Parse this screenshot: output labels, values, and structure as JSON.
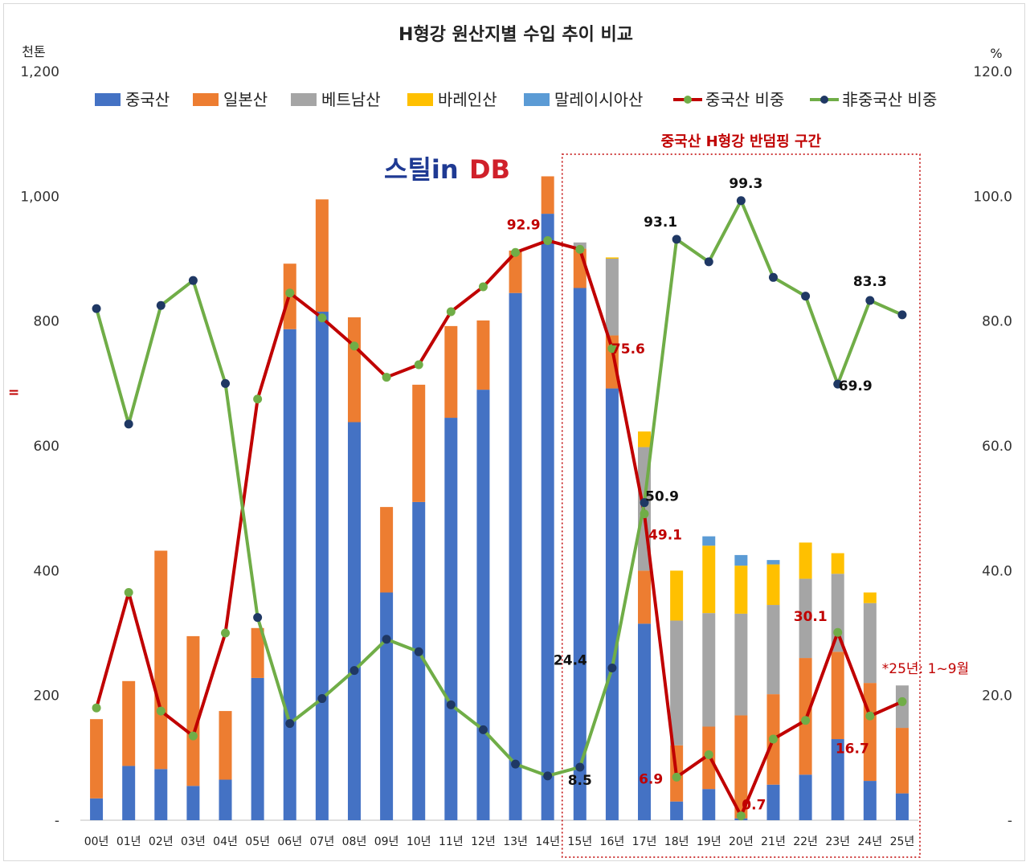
{
  "chart_data": {
    "type": "bar",
    "title": "H형강 원산지별 수입 추이 비교",
    "left_unit": "천톤",
    "right_unit": "%",
    "categories": [
      "00년",
      "01년",
      "02년",
      "03년",
      "04년",
      "05년",
      "06년",
      "07년",
      "08년",
      "09년",
      "10년",
      "11년",
      "12년",
      "13년",
      "14년",
      "15년",
      "16년",
      "17년",
      "18년",
      "19년",
      "20년",
      "21년",
      "22년",
      "23년",
      "24년",
      "25년"
    ],
    "ylim": [
      0,
      1200
    ],
    "y2lim": [
      0,
      120
    ],
    "yticks": [
      "-",
      "200",
      "400",
      "600",
      "800",
      "1,000",
      "1,200"
    ],
    "y2ticks": [
      "-",
      "20.0",
      "40.0",
      "60.0",
      "80.0",
      "100.0",
      "120.0"
    ],
    "stacked": true,
    "series": [
      {
        "name": "중국산",
        "type": "bar",
        "color": "#4472c4",
        "values": [
          35,
          87,
          82,
          55,
          65,
          228,
          787,
          815,
          638,
          365,
          510,
          645,
          690,
          845,
          972,
          853,
          692,
          315,
          30,
          50,
          3,
          57,
          73,
          130,
          63,
          43
        ]
      },
      {
        "name": "일본산",
        "type": "bar",
        "color": "#ed7d31",
        "values": [
          127,
          136,
          350,
          240,
          110,
          80,
          105,
          180,
          168,
          137,
          188,
          147,
          111,
          68,
          60,
          63,
          85,
          85,
          90,
          100,
          165,
          145,
          187,
          140,
          157,
          105
        ]
      },
      {
        "name": "베트남산",
        "type": "bar",
        "color": "#a5a5a5",
        "values": [
          0,
          0,
          0,
          0,
          0,
          0,
          0,
          0,
          0,
          0,
          0,
          0,
          0,
          0,
          0,
          10,
          123,
          198,
          200,
          182,
          163,
          143,
          127,
          125,
          128,
          68
        ]
      },
      {
        "name": "바레인산",
        "type": "bar",
        "color": "#ffc000",
        "values": [
          0,
          0,
          0,
          0,
          0,
          0,
          0,
          0,
          0,
          0,
          0,
          0,
          0,
          0,
          0,
          0,
          2,
          25,
          80,
          108,
          77,
          65,
          58,
          33,
          17,
          0
        ]
      },
      {
        "name": "말레이시아산",
        "type": "bar",
        "color": "#5b9bd5",
        "values": [
          0,
          0,
          0,
          0,
          0,
          0,
          0,
          0,
          0,
          0,
          0,
          0,
          0,
          0,
          0,
          0,
          0,
          0,
          0,
          15,
          17,
          7,
          0,
          0,
          0,
          0
        ]
      },
      {
        "name": "중국산 비중",
        "type": "line",
        "axis": "right",
        "color": "#c00000",
        "marker": "#70ad47",
        "values": [
          18,
          36.5,
          17.5,
          13.5,
          30,
          67.5,
          84.5,
          80.5,
          76,
          71,
          73,
          81.5,
          85.5,
          91,
          92.9,
          91.5,
          75.6,
          49.1,
          6.9,
          10.5,
          0.7,
          13,
          16,
          30.1,
          16.7,
          19
        ]
      },
      {
        "name": "非중국산 비중",
        "type": "line",
        "axis": "right",
        "color": "#70ad47",
        "marker": "#1f3864",
        "values": [
          82,
          63.5,
          82.5,
          86.5,
          70,
          32.5,
          15.5,
          19.5,
          24,
          29,
          27,
          18.5,
          14.5,
          9,
          7.1,
          8.5,
          24.4,
          50.9,
          93.1,
          89.5,
          99.3,
          87,
          84,
          69.9,
          83.3,
          81
        ]
      }
    ],
    "legend": "top",
    "annotations": [
      {
        "text": "중국산 H형강 반덤핑 구간",
        "from": "15년",
        "to": "25년"
      },
      {
        "text": "*25년: 1~9월"
      }
    ],
    "labels": {
      "red": [
        {
          "index": 14,
          "text": "92.9"
        },
        {
          "index": 16,
          "text": "75.6"
        },
        {
          "index": 17,
          "text": "49.1"
        },
        {
          "index": 18,
          "text": "6.9"
        },
        {
          "index": 20,
          "text": "0.7"
        },
        {
          "index": 23,
          "text": "30.1"
        },
        {
          "index": 24,
          "text": "16.7"
        }
      ],
      "black": [
        {
          "index": 15,
          "text": "8.5"
        },
        {
          "index": 16,
          "text": "24.4"
        },
        {
          "index": 17,
          "text": "50.9"
        },
        {
          "index": 18,
          "text": "93.1"
        },
        {
          "index": 20,
          "text": "99.3"
        },
        {
          "index": 23,
          "text": "69.9"
        },
        {
          "index": 24,
          "text": "83.3"
        }
      ]
    },
    "grid": false
  },
  "logo": {
    "part1": "스틸in",
    "part2": "DB"
  },
  "stray_mark": "="
}
